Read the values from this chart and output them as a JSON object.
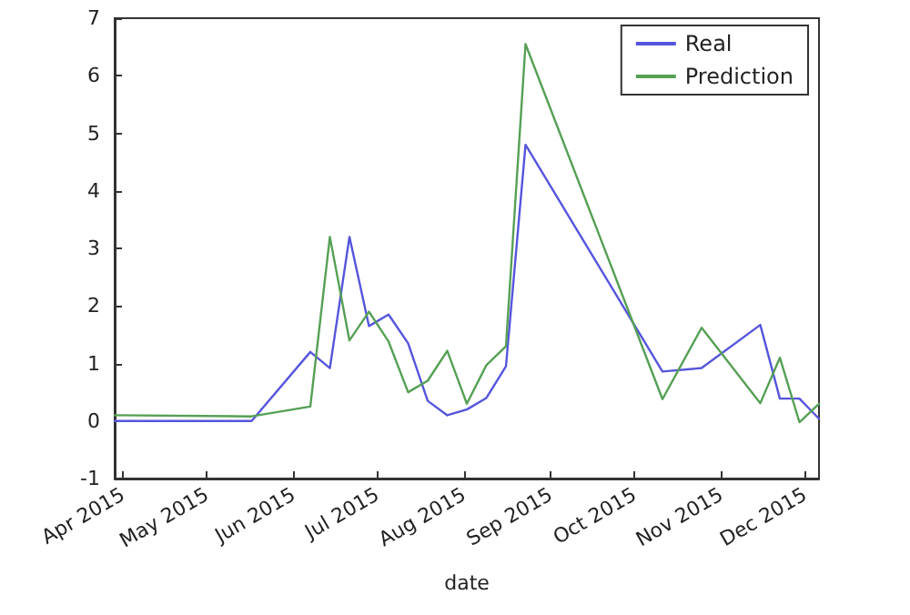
{
  "chart_data": {
    "type": "line",
    "xlabel": "date",
    "x": [
      "2015-03-29",
      "2015-05-17",
      "2015-06-07",
      "2015-06-14",
      "2015-06-21",
      "2015-06-28",
      "2015-07-05",
      "2015-07-12",
      "2015-07-19",
      "2015-07-26",
      "2015-08-02",
      "2015-08-09",
      "2015-08-16",
      "2015-08-23",
      "2015-10-11",
      "2015-10-25",
      "2015-11-15",
      "2015-11-22",
      "2015-11-29",
      "2015-12-06"
    ],
    "series": [
      {
        "name": "Real",
        "color": "#5555dd",
        "values": [
          0.0,
          0.0,
          1.2,
          0.92,
          3.2,
          1.65,
          1.85,
          1.35,
          0.35,
          0.1,
          0.2,
          0.4,
          0.95,
          4.8,
          0.86,
          0.92,
          1.67,
          0.39,
          0.39,
          0.04
        ]
      },
      {
        "name": "Prediction",
        "color": "#55a055",
        "values": [
          0.1,
          0.08,
          0.25,
          3.2,
          1.4,
          1.9,
          1.38,
          0.5,
          0.7,
          1.22,
          0.3,
          0.97,
          1.3,
          6.55,
          0.38,
          1.62,
          0.31,
          1.1,
          -0.02,
          0.3
        ]
      }
    ],
    "xlim": [
      "2015-03-29",
      "2015-12-06"
    ],
    "xticks": [
      {
        "value": "2015-04-01",
        "label": "Apr 2015"
      },
      {
        "value": "2015-05-01",
        "label": "May 2015"
      },
      {
        "value": "2015-06-01",
        "label": "Jun 2015"
      },
      {
        "value": "2015-07-01",
        "label": "Jul 2015"
      },
      {
        "value": "2015-08-01",
        "label": "Aug 2015"
      },
      {
        "value": "2015-09-01",
        "label": "Sep 2015"
      },
      {
        "value": "2015-10-01",
        "label": "Oct 2015"
      },
      {
        "value": "2015-11-01",
        "label": "Nov 2015"
      },
      {
        "value": "2015-12-01",
        "label": "Dec 2015"
      }
    ],
    "ylim": [
      -1,
      7
    ],
    "yticks": [
      -1,
      0,
      1,
      2,
      3,
      4,
      5,
      6,
      7
    ],
    "grid": false,
    "legend": "top right",
    "marker": "none",
    "line_style": "solid"
  }
}
